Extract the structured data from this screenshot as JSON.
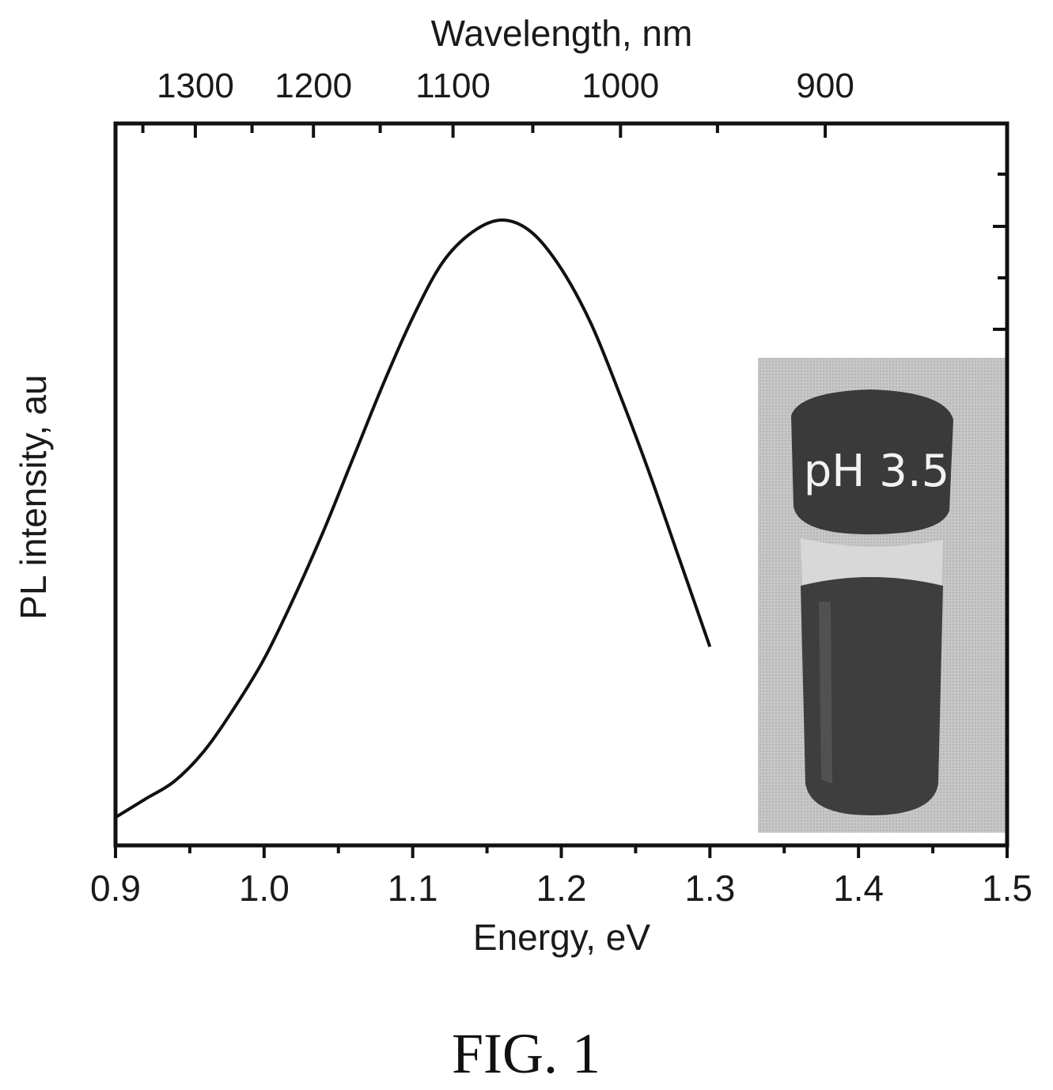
{
  "figure_label": "FIG. 1",
  "chart_data": {
    "type": "line",
    "xlabel": "Energy, eV",
    "ylabel": "PL intensity, au",
    "top_xlabel": "Wavelength, nm",
    "xlim": [
      0.9,
      1.5
    ],
    "ylim": [
      0,
      1.0
    ],
    "x_ticks": [
      "0.9",
      "1.0",
      "1.1",
      "1.2",
      "1.3",
      "1.4",
      "1.5"
    ],
    "top_ticks": [
      {
        "label": "1300",
        "nm": 1300
      },
      {
        "label": "1200",
        "nm": 1200
      },
      {
        "label": "1100",
        "nm": 1100
      },
      {
        "label": "1000",
        "nm": 1000
      },
      {
        "label": "900",
        "nm": 900
      }
    ],
    "y_tick_labels_shown": false,
    "grid": false,
    "series": [
      {
        "x": [
          0.9,
          0.92,
          0.94,
          0.96,
          0.98,
          1.0,
          1.02,
          1.04,
          1.06,
          1.08,
          1.1,
          1.12,
          1.14,
          1.16,
          1.18,
          1.2,
          1.22,
          1.24,
          1.26,
          1.28,
          1.3
        ],
        "y": [
          0.02,
          0.05,
          0.08,
          0.13,
          0.2,
          0.28,
          0.38,
          0.49,
          0.61,
          0.73,
          0.84,
          0.93,
          0.98,
          1.0,
          0.98,
          0.92,
          0.83,
          0.71,
          0.58,
          0.44,
          0.3
        ],
        "color": "#111111"
      }
    ],
    "inset": {
      "label": "pH 3.5",
      "background": "#bdbdbd",
      "vial_color": "#3a3a3a"
    }
  }
}
